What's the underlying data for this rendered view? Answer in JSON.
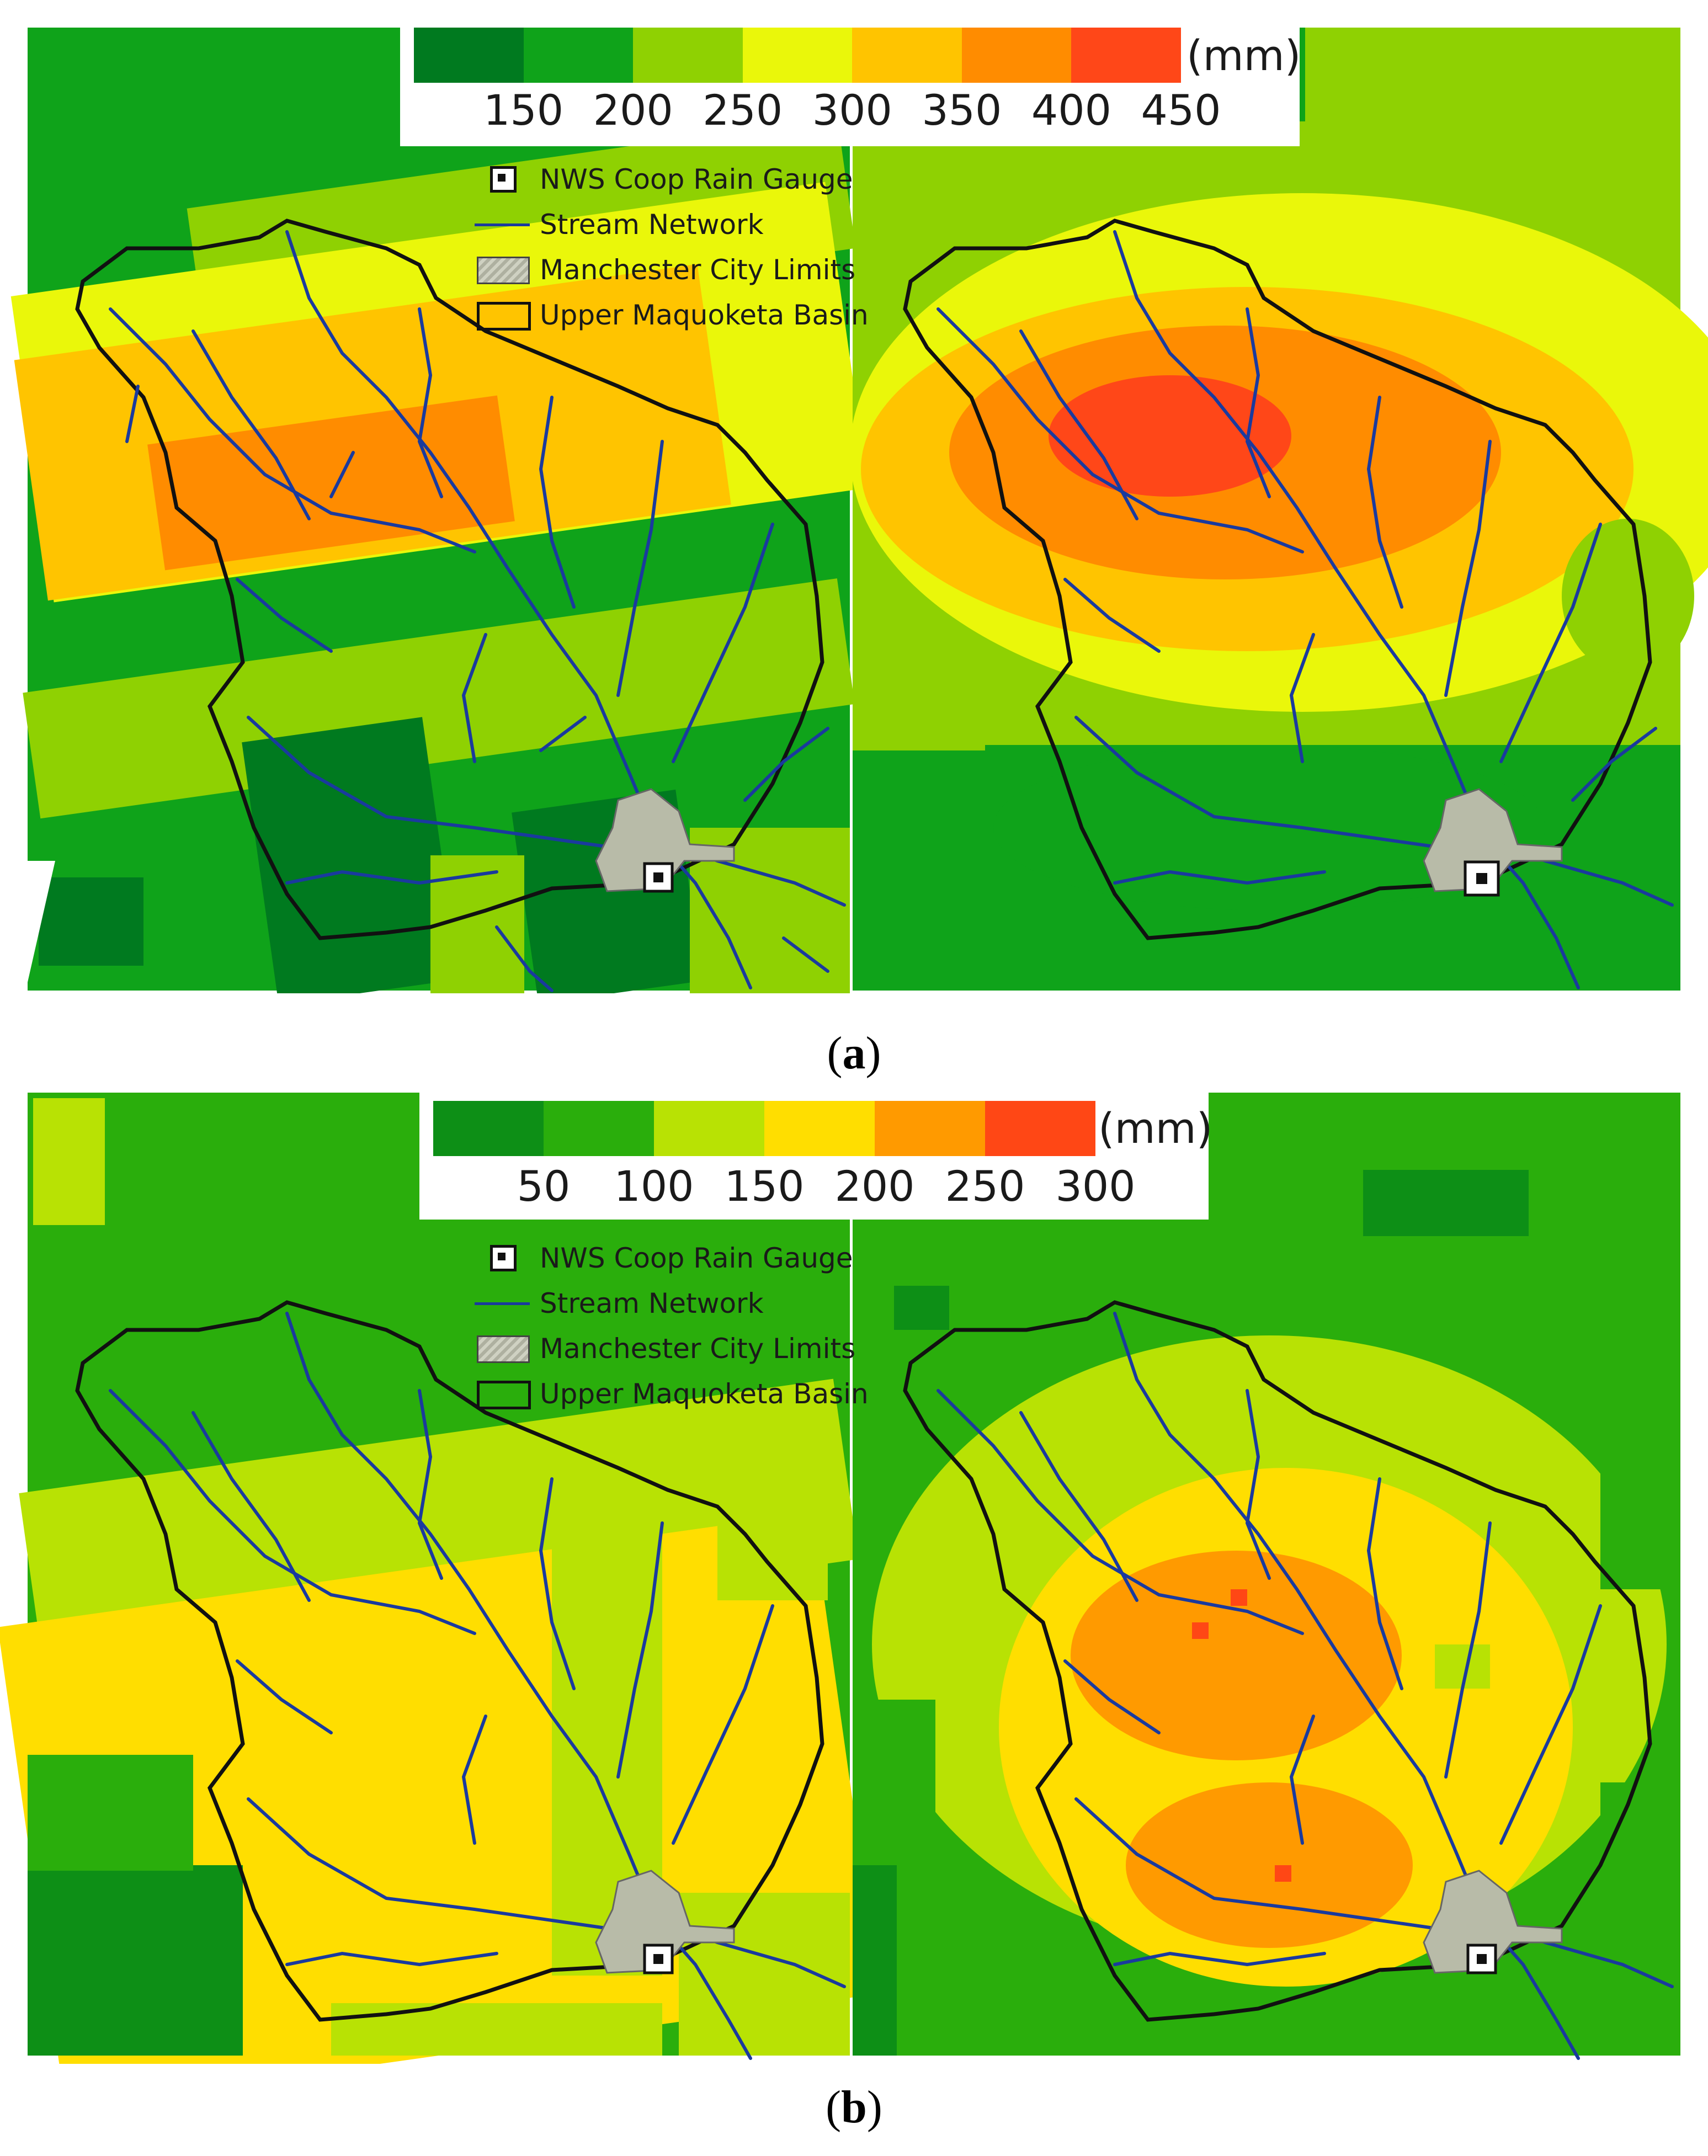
{
  "legend_common": {
    "unit": "(mm)",
    "gauge_label": "NWS Coop Rain Gauge",
    "stream_label": "Stream Network",
    "city_label": "Manchester City Limits",
    "basin_label": "Upper Maquoketa Basin"
  },
  "panel_a": {
    "caption_letter": "a",
    "colors": [
      "#007a1f",
      "#0fa31a",
      "#8fd102",
      "#eaf70a",
      "#ffc400",
      "#ff8c00",
      "#ff4718"
    ],
    "ticks": [
      "150",
      "200",
      "250",
      "300",
      "350",
      "400",
      "450"
    ]
  },
  "panel_b": {
    "caption_letter": "b",
    "colors": [
      "#0d8f16",
      "#2aae0c",
      "#b8e204",
      "#ffde00",
      "#ff9a00",
      "#ff4715"
    ],
    "ticks": [
      "50",
      "100",
      "150",
      "200",
      "250",
      "300"
    ]
  },
  "colors": {
    "stream": "#1a3a9e",
    "basin_outline": "#111111",
    "city_fill": "#b8bba8",
    "gauge_border": "#111111"
  }
}
